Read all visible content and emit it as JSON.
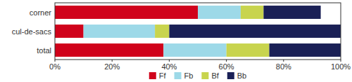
{
  "chart_data": {
    "type": "bar",
    "orientation": "horizontal",
    "stacked": true,
    "categories": [
      "corner",
      "cul-de-sacs",
      "total"
    ],
    "series": [
      {
        "name": "Ff",
        "color": "#d0021b",
        "values": [
          0.5,
          0.1,
          0.38
        ]
      },
      {
        "name": "Fb",
        "color": "#9dd9e8",
        "values": [
          0.15,
          0.25,
          0.22
        ]
      },
      {
        "name": "Bf",
        "color": "#c8d44e",
        "values": [
          0.08,
          0.05,
          0.15
        ]
      },
      {
        "name": "Bb",
        "color": "#1a2056",
        "values": [
          0.2,
          0.6,
          0.25
        ]
      }
    ],
    "xlim": [
      0,
      1
    ],
    "xticks": [
      {
        "value": 0,
        "label": "0%"
      },
      {
        "value": 0.2,
        "label": "20%"
      },
      {
        "value": 0.4,
        "label": "40%"
      },
      {
        "value": 0.6,
        "label": "60%"
      },
      {
        "value": 0.8,
        "label": "80%"
      },
      {
        "value": 1.0,
        "label": "100%"
      }
    ],
    "grid": false,
    "legend": "bottom"
  }
}
